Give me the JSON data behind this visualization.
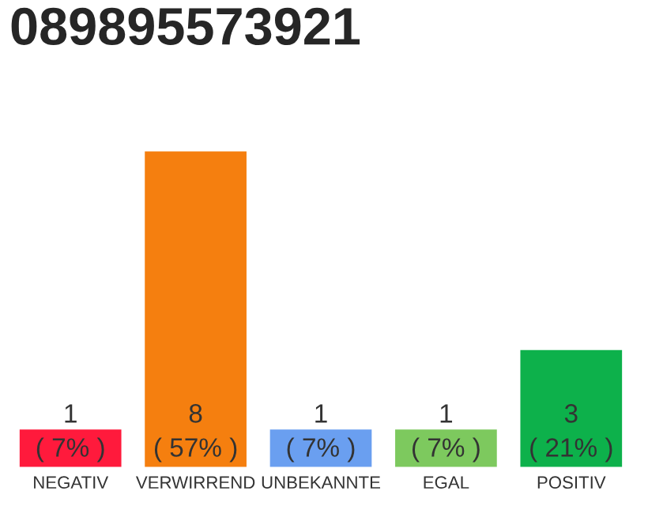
{
  "chart_data": {
    "type": "bar",
    "title": "089895573921",
    "categories": [
      "NEGATIV",
      "VERWIRREND",
      "UNBEKANNTE",
      "EGAL",
      "POSITIV"
    ],
    "values": [
      1,
      8,
      1,
      1,
      3
    ],
    "colors": [
      "#ff1a3c",
      "#f57f0f",
      "#6a9ff0",
      "#7dc95e",
      "#0db14b"
    ],
    "value_labels": [
      "1\n( 7% )",
      "8\n( 57% )",
      "1\n( 7% )",
      "1\n( 7% )",
      "3\n( 21% )"
    ],
    "grid": false,
    "legend": false
  }
}
